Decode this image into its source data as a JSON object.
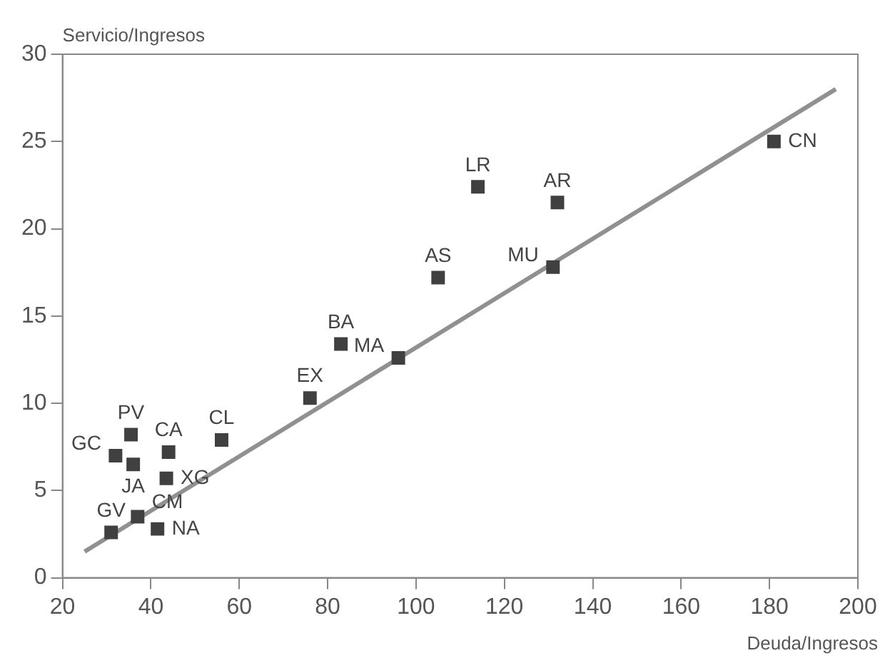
{
  "chart_data": {
    "type": "scatter",
    "xlabel": "Deuda/Ingresos",
    "ylabel": "Servicio/Ingresos",
    "series": [
      {
        "marker": "square",
        "color": "#404040",
        "x": [
          181,
          114,
          132,
          131,
          105,
          83,
          96,
          76,
          56,
          35.5,
          32,
          36,
          44,
          43.5,
          37,
          31,
          41.5
        ],
        "values": [
          25,
          22.4,
          21.5,
          17.8,
          17.2,
          13.4,
          12.6,
          10.3,
          7.9,
          8.2,
          7,
          6.5,
          7.2,
          5.7,
          3.5,
          2.6,
          2.8
        ]
      },
      {
        "type": "line",
        "color": "#909090",
        "x": [
          25,
          195
        ],
        "values": [
          1.5,
          28
        ]
      }
    ],
    "annotations": [
      {
        "text": "CN",
        "x": 181,
        "y": 25
      },
      {
        "text": "LR",
        "x": 114,
        "y": 22.4
      },
      {
        "text": "AR",
        "x": 132,
        "y": 21.5
      },
      {
        "text": "MU",
        "x": 131,
        "y": 17.8
      },
      {
        "text": "AS",
        "x": 105,
        "y": 17.2
      },
      {
        "text": "BA",
        "x": 83,
        "y": 13.4
      },
      {
        "text": "MA",
        "x": 96,
        "y": 12.6
      },
      {
        "text": "EX",
        "x": 76,
        "y": 10.3
      },
      {
        "text": "CL",
        "x": 56,
        "y": 7.9
      },
      {
        "text": "PV",
        "x": 35.5,
        "y": 8.2
      },
      {
        "text": "GC",
        "x": 32,
        "y": 7
      },
      {
        "text": "JA",
        "x": 36,
        "y": 6.5
      },
      {
        "text": "CA",
        "x": 44,
        "y": 7.2
      },
      {
        "text": "XG",
        "x": 43.5,
        "y": 5.7
      },
      {
        "text": "CM",
        "x": 37,
        "y": 3.5
      },
      {
        "text": "GV",
        "x": 31,
        "y": 2.6
      },
      {
        "text": "NA",
        "x": 41.5,
        "y": 2.8
      }
    ],
    "grid": false,
    "legend": false,
    "xlim": [
      20,
      200
    ],
    "xticks": [
      20,
      40,
      60,
      80,
      100,
      120,
      140,
      160,
      180,
      200
    ],
    "ylim": [
      0,
      30
    ],
    "yticks": [
      0,
      5,
      10,
      15,
      20,
      25,
      30
    ]
  }
}
